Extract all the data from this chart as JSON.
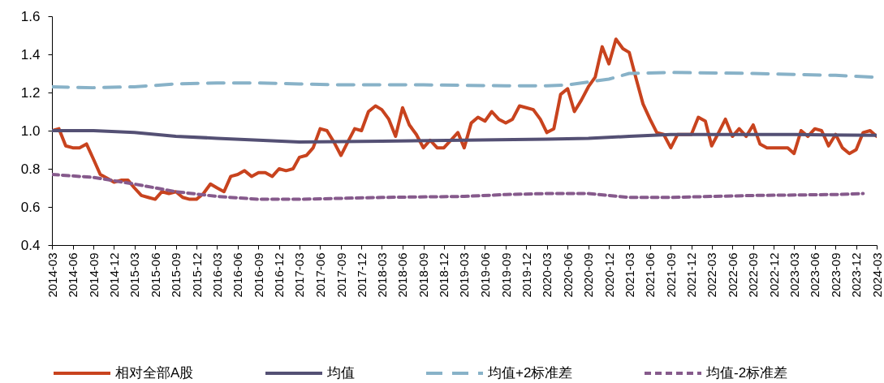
{
  "chart_data": {
    "type": "line",
    "legend": "bottom",
    "grid": false,
    "xlim": [
      "2014-03",
      "2024-03"
    ],
    "xticks": [
      "2014-03",
      "2014-06",
      "2014-09",
      "2014-12",
      "2015-03",
      "2015-06",
      "2015-09",
      "2015-12",
      "2016-03",
      "2016-06",
      "2016-09",
      "2016-12",
      "2017-03",
      "2017-06",
      "2017-09",
      "2017-12",
      "2018-03",
      "2018-06",
      "2018-09",
      "2018-12",
      "2019-03",
      "2019-06",
      "2019-09",
      "2019-12",
      "2020-03",
      "2020-06",
      "2020-09",
      "2020-12",
      "2021-03",
      "2021-06",
      "2021-09",
      "2021-12",
      "2022-03",
      "2022-06",
      "2022-09",
      "2022-12",
      "2023-03",
      "2023-06",
      "2023-09",
      "2023-12",
      "2024-03"
    ],
    "ylim": [
      0.4,
      1.6
    ],
    "yticks": [
      0.4,
      0.6,
      0.8,
      {
        "value": 1,
        "label": "1.0"
      },
      1.2,
      1.4,
      1.6
    ],
    "series": [
      {
        "name": "相对全部A股",
        "color": "#c8431e",
        "line_style": "solid",
        "x": [
          "2014-03",
          "2014-04",
          "2014-05",
          "2014-06",
          "2014-07",
          "2014-08",
          "2014-09",
          "2014-10",
          "2014-11",
          "2014-12",
          "2015-01",
          "2015-02",
          "2015-03",
          "2015-04",
          "2015-05",
          "2015-06",
          "2015-07",
          "2015-08",
          "2015-09",
          "2015-10",
          "2015-11",
          "2015-12",
          "2016-01",
          "2016-02",
          "2016-03",
          "2016-04",
          "2016-05",
          "2016-06",
          "2016-07",
          "2016-08",
          "2016-09",
          "2016-10",
          "2016-11",
          "2016-12",
          "2017-01",
          "2017-02",
          "2017-03",
          "2017-04",
          "2017-05",
          "2017-06",
          "2017-07",
          "2017-08",
          "2017-09",
          "2017-10",
          "2017-11",
          "2017-12",
          "2018-01",
          "2018-02",
          "2018-03",
          "2018-04",
          "2018-05",
          "2018-06",
          "2018-07",
          "2018-08",
          "2018-09",
          "2018-10",
          "2018-11",
          "2018-12",
          "2019-01",
          "2019-02",
          "2019-03",
          "2019-04",
          "2019-05",
          "2019-06",
          "2019-07",
          "2019-08",
          "2019-09",
          "2019-10",
          "2019-11",
          "2019-12",
          "2020-01",
          "2020-02",
          "2020-03",
          "2020-04",
          "2020-05",
          "2020-06",
          "2020-07",
          "2020-08",
          "2020-09",
          "2020-10",
          "2020-11",
          "2020-12",
          "2021-01",
          "2021-02",
          "2021-03",
          "2021-04",
          "2021-05",
          "2021-06",
          "2021-07",
          "2021-08",
          "2021-09",
          "2021-10",
          "2021-11",
          "2021-12",
          "2022-01",
          "2022-02",
          "2022-03",
          "2022-04",
          "2022-05",
          "2022-06",
          "2022-07",
          "2022-08",
          "2022-09",
          "2022-10",
          "2022-11",
          "2022-12",
          "2023-01",
          "2023-02",
          "2023-03",
          "2023-04",
          "2023-05",
          "2023-06",
          "2023-07",
          "2023-08",
          "2023-09",
          "2023-10",
          "2023-11",
          "2023-12",
          "2024-01",
          "2024-02",
          "2024-03"
        ],
        "values": [
          1.0,
          1.01,
          0.92,
          0.91,
          0.91,
          0.93,
          0.85,
          0.77,
          0.75,
          0.73,
          0.74,
          0.74,
          0.7,
          0.66,
          0.65,
          0.64,
          0.68,
          0.67,
          0.68,
          0.65,
          0.64,
          0.64,
          0.67,
          0.72,
          0.7,
          0.68,
          0.76,
          0.77,
          0.79,
          0.76,
          0.78,
          0.78,
          0.76,
          0.8,
          0.79,
          0.8,
          0.86,
          0.87,
          0.91,
          1.01,
          1.0,
          0.94,
          0.87,
          0.94,
          1.01,
          1.0,
          1.1,
          1.13,
          1.11,
          1.06,
          0.97,
          1.12,
          1.03,
          0.98,
          0.91,
          0.95,
          0.91,
          0.91,
          0.95,
          0.99,
          0.91,
          1.04,
          1.07,
          1.05,
          1.1,
          1.06,
          1.04,
          1.06,
          1.13,
          1.12,
          1.11,
          1.06,
          0.99,
          1.01,
          1.19,
          1.22,
          1.1,
          1.16,
          1.23,
          1.28,
          1.44,
          1.35,
          1.48,
          1.43,
          1.41,
          1.27,
          1.14,
          1.06,
          0.99,
          0.98,
          0.91,
          0.98,
          0.98,
          0.98,
          1.07,
          1.05,
          0.92,
          0.99,
          1.06,
          0.97,
          1.01,
          0.97,
          1.03,
          0.93,
          0.91,
          0.91,
          0.91,
          0.91,
          0.88,
          1.0,
          0.97,
          1.01,
          1.0,
          0.92,
          0.98,
          0.91,
          0.88,
          0.9,
          0.99,
          1.0,
          0.97
        ]
      },
      {
        "name": "均值",
        "color": "#545074",
        "line_style": "solid",
        "x": [
          "2014-03",
          "2014-09",
          "2015-03",
          "2015-09",
          "2016-03",
          "2016-09",
          "2017-03",
          "2018-03",
          "2019-03",
          "2020-03",
          "2020-09",
          "2021-03",
          "2021-09",
          "2022-03",
          "2023-03",
          "2024-03"
        ],
        "values": [
          1.0,
          1.0,
          0.99,
          0.97,
          0.96,
          0.95,
          0.94,
          0.945,
          0.95,
          0.955,
          0.96,
          0.97,
          0.98,
          0.98,
          0.98,
          0.975
        ]
      },
      {
        "name": "均值+2标准差",
        "color": "#88b2c8",
        "line_style": "dashed",
        "x": [
          "2014-03",
          "2014-09",
          "2015-03",
          "2015-09",
          "2016-03",
          "2016-09",
          "2017-03",
          "2017-09",
          "2018-09",
          "2019-09",
          "2020-03",
          "2020-06",
          "2020-12",
          "2021-03",
          "2021-09",
          "2022-09",
          "2023-09",
          "2024-03"
        ],
        "values": [
          1.23,
          1.225,
          1.23,
          1.245,
          1.25,
          1.25,
          1.245,
          1.24,
          1.24,
          1.235,
          1.235,
          1.24,
          1.27,
          1.3,
          1.305,
          1.3,
          1.29,
          1.28
        ]
      },
      {
        "name": "均值-2标准差",
        "color": "#865a8c",
        "line_style": "dotted",
        "x": [
          "2014-03",
          "2014-09",
          "2015-03",
          "2015-09",
          "2016-03",
          "2016-09",
          "2017-03",
          "2018-03",
          "2019-03",
          "2019-09",
          "2020-03",
          "2020-09",
          "2021-03",
          "2021-09",
          "2022-09",
          "2023-09",
          "2024-01"
        ],
        "values": [
          0.77,
          0.755,
          0.72,
          0.68,
          0.655,
          0.64,
          0.64,
          0.65,
          0.655,
          0.665,
          0.67,
          0.67,
          0.65,
          0.65,
          0.66,
          0.665,
          0.67
        ]
      }
    ]
  }
}
